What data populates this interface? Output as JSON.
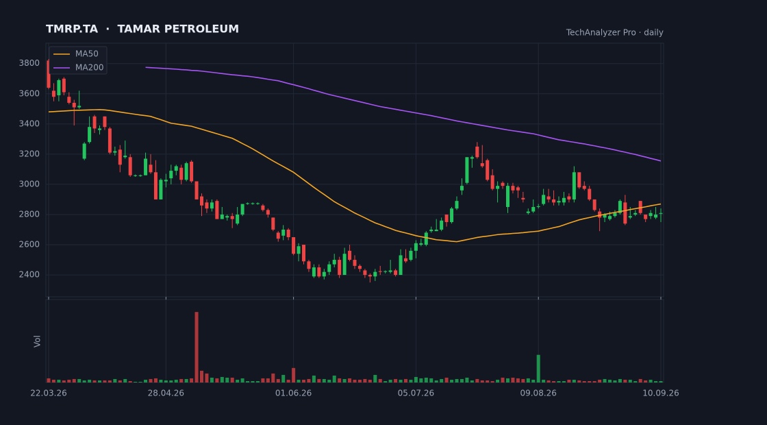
{
  "chart_data": {
    "type": "candlestick",
    "title": "TMRP.TA  ·  TAMAR PETROLEUM",
    "subtitle": "TechAnalyzer Pro · daily",
    "volume_label": "Vol",
    "categories": [
      "22.03.26",
      null,
      null,
      null,
      null,
      null,
      null,
      null,
      null,
      null,
      null,
      null,
      null,
      null,
      null,
      null,
      null,
      null,
      null,
      null,
      null,
      null,
      null,
      "28.04.26",
      null,
      null,
      null,
      null,
      null,
      null,
      null,
      null,
      null,
      null,
      null,
      null,
      null,
      null,
      null,
      null,
      null,
      null,
      null,
      null,
      null,
      null,
      null,
      null,
      "01.06.26",
      null,
      null,
      null,
      null,
      null,
      null,
      null,
      null,
      null,
      null,
      null,
      null,
      null,
      null,
      null,
      null,
      null,
      null,
      null,
      null,
      null,
      null,
      null,
      "05.07.26",
      null,
      null,
      null,
      null,
      null,
      null,
      null,
      null,
      null,
      null,
      null,
      null,
      null,
      null,
      null,
      null,
      null,
      null,
      null,
      null,
      null,
      null,
      null,
      "09.08.26",
      null,
      null,
      null,
      null,
      null,
      null,
      null,
      null,
      null,
      null,
      null,
      null,
      null,
      null,
      null,
      null,
      null,
      null,
      null,
      null,
      null,
      null,
      null,
      "10.09.26"
    ],
    "open": [
      3820,
      3620,
      3590,
      3700,
      3580,
      3540,
      3510,
      3170,
      3280,
      3450,
      3360,
      3450,
      3370,
      3210,
      3230,
      3180,
      3180,
      3055,
      3055,
      3060,
      3130,
      3080,
      2900,
      3020,
      3040,
      3090,
      3110,
      3030,
      3150,
      3020,
      2920,
      2880,
      2840,
      2890,
      2770,
      2780,
      2790,
      2740,
      2800,
      2870,
      2870,
      2870,
      2860,
      2830,
      2780,
      2680,
      2660,
      2700,
      2650,
      2540,
      2600,
      2490,
      2390,
      2450,
      2390,
      2420,
      2470,
      2500,
      2400,
      2560,
      2500,
      2460,
      2430,
      2400,
      2390,
      2425,
      2420,
      2420,
      2430,
      2400,
      2510,
      2500,
      2560,
      2600,
      2600,
      2690,
      2690,
      2700,
      2800,
      2750,
      2840,
      2960,
      3010,
      3170,
      3250,
      3140,
      3160,
      3060,
      2970,
      3010,
      2850,
      2990,
      2980,
      2910,
      2810,
      2820,
      2850,
      2870,
      2920,
      2900,
      2880,
      2880,
      2920,
      2900,
      3080,
      2990,
      2970,
      2900,
      2820,
      2780,
      2770,
      2790,
      2810,
      2880,
      2780,
      2800,
      2890,
      2800,
      2790,
      2780,
      2805
    ],
    "high": [
      3830,
      3670,
      3700,
      3710,
      3610,
      3560,
      3620,
      3280,
      3450,
      3460,
      3390,
      3450,
      3380,
      3250,
      3260,
      3290,
      3200,
      3065,
      3065,
      3210,
      3200,
      3160,
      3040,
      3070,
      3130,
      3130,
      3130,
      3150,
      3160,
      3020,
      2940,
      2900,
      2900,
      2900,
      2850,
      2800,
      2810,
      2850,
      2870,
      2880,
      2880,
      2880,
      2870,
      2840,
      2780,
      2690,
      2730,
      2710,
      2650,
      2610,
      2600,
      2500,
      2470,
      2470,
      2440,
      2490,
      2540,
      2520,
      2580,
      2600,
      2530,
      2470,
      2440,
      2410,
      2440,
      2460,
      2430,
      2500,
      2440,
      2570,
      2570,
      2580,
      2630,
      2640,
      2690,
      2720,
      2770,
      2780,
      2800,
      2850,
      2920,
      3040,
      3180,
      3190,
      3280,
      3260,
      3170,
      3100,
      3020,
      3020,
      3010,
      3010,
      2990,
      2950,
      2840,
      2900,
      2870,
      2970,
      2970,
      2960,
      2920,
      2950,
      2940,
      3120,
      3080,
      3020,
      2990,
      2900,
      2840,
      2810,
      2820,
      2830,
      2900,
      2930,
      2850,
      2830,
      2890,
      2800,
      2830,
      2850,
      2840
    ],
    "low": [
      3630,
      3550,
      3550,
      3590,
      3530,
      3390,
      3500,
      3160,
      3270,
      3340,
      3330,
      3360,
      3200,
      3190,
      3080,
      3170,
      3050,
      3050,
      3050,
      3060,
      3070,
      2900,
      2900,
      2980,
      3000,
      3060,
      3000,
      3020,
      3010,
      2900,
      2790,
      2810,
      2820,
      2770,
      2770,
      2760,
      2710,
      2730,
      2790,
      2865,
      2865,
      2865,
      2820,
      2780,
      2690,
      2620,
      2630,
      2630,
      2530,
      2490,
      2470,
      2420,
      2380,
      2380,
      2370,
      2400,
      2450,
      2380,
      2400,
      2490,
      2440,
      2420,
      2380,
      2350,
      2360,
      2400,
      2410,
      2410,
      2390,
      2400,
      2480,
      2490,
      2510,
      2590,
      2590,
      2680,
      2690,
      2690,
      2720,
      2740,
      2830,
      2930,
      3000,
      3110,
      3170,
      3110,
      3020,
      2960,
      2880,
      2970,
      2810,
      2940,
      2910,
      2880,
      2800,
      2810,
      2840,
      2860,
      2880,
      2860,
      2860,
      2860,
      2880,
      2880,
      2970,
      2960,
      2890,
      2820,
      2690,
      2750,
      2760,
      2780,
      2800,
      2730,
      2770,
      2790,
      2800,
      2750,
      2770,
      2770,
      2750
    ],
    "close": [
      3640,
      3580,
      3690,
      3610,
      3540,
      3510,
      3520,
      3270,
      3380,
      3370,
      3370,
      3380,
      3210,
      3220,
      3130,
      3190,
      3060,
      3060,
      3060,
      3170,
      3080,
      2900,
      3030,
      3030,
      3090,
      3120,
      3030,
      3140,
      3020,
      2900,
      2860,
      2840,
      2880,
      2770,
      2800,
      2790,
      2770,
      2800,
      2870,
      2875,
      2875,
      2875,
      2830,
      2800,
      2700,
      2640,
      2700,
      2650,
      2540,
      2590,
      2490,
      2440,
      2450,
      2390,
      2420,
      2470,
      2500,
      2400,
      2540,
      2500,
      2460,
      2440,
      2400,
      2390,
      2420,
      2420,
      2425,
      2430,
      2400,
      2530,
      2490,
      2560,
      2610,
      2610,
      2680,
      2700,
      2700,
      2760,
      2750,
      2840,
      2890,
      2990,
      3180,
      3180,
      3180,
      3120,
      3030,
      2970,
      2990,
      2990,
      2990,
      2960,
      2960,
      2900,
      2820,
      2850,
      2855,
      2930,
      2900,
      2880,
      2890,
      2910,
      2900,
      3080,
      2980,
      2970,
      2900,
      2830,
      2780,
      2800,
      2790,
      2810,
      2890,
      2740,
      2790,
      2810,
      2810,
      2770,
      2810,
      2800,
      2810
    ],
    "volume": [
      6,
      4,
      4,
      3,
      4,
      5,
      5,
      3,
      4,
      3,
      3,
      3,
      3,
      5,
      3,
      5,
      2,
      1,
      1,
      4,
      5,
      6,
      4,
      3,
      3,
      4,
      5,
      5,
      6,
      102,
      17,
      13,
      7,
      6,
      8,
      7,
      7,
      4,
      6,
      2,
      2,
      2,
      6,
      6,
      13,
      5,
      11,
      4,
      21,
      4,
      4,
      5,
      10,
      5,
      5,
      4,
      10,
      6,
      5,
      6,
      4,
      4,
      5,
      4,
      11,
      5,
      2,
      4,
      5,
      4,
      5,
      4,
      8,
      6,
      7,
      6,
      3,
      5,
      7,
      4,
      5,
      5,
      7,
      3,
      5,
      3,
      3,
      2,
      4,
      7,
      6,
      7,
      6,
      5,
      6,
      4,
      40,
      4,
      3,
      2,
      2,
      2,
      4,
      4,
      3,
      2,
      2,
      2,
      4,
      5,
      4,
      3,
      5,
      4,
      4,
      2,
      5,
      3,
      4,
      2,
      2
    ],
    "series": [
      {
        "name": "MA50",
        "color": "#f5a623",
        "values": [
          3480,
          3482,
          3484,
          3486,
          3488,
          3490,
          3491,
          3492,
          3493,
          3494,
          3495,
          3493,
          3489,
          3484,
          3479,
          3474,
          3469,
          3464,
          3459,
          3455,
          3450,
          3439,
          3428,
          3416,
          3405,
          3400,
          3395,
          3390,
          3385,
          3375,
          3365,
          3355,
          3345,
          3335,
          3325,
          3315,
          3305,
          3288,
          3270,
          3253,
          3235,
          3215,
          3195,
          3175,
          3155,
          3136,
          3118,
          3099,
          3080,
          3055,
          3030,
          3005,
          2980,
          2956,
          2933,
          2909,
          2885,
          2866,
          2848,
          2829,
          2810,
          2794,
          2778,
          2761,
          2745,
          2733,
          2720,
          2708,
          2695,
          2686,
          2678,
          2669,
          2660,
          2653,
          2647,
          2640,
          2633,
          2630,
          2627,
          2623,
          2620,
          2627,
          2634,
          2641,
          2648,
          2653,
          2657,
          2662,
          2667,
          2670,
          2672,
          2675,
          2677,
          2680,
          2684,
          2687,
          2690,
          2698,
          2705,
          2713,
          2720,
          2731,
          2743,
          2754,
          2765,
          2773,
          2780,
          2788,
          2795,
          2801,
          2808,
          2814,
          2820,
          2826,
          2833,
          2839,
          2845,
          2851,
          2858,
          2864,
          2870
        ]
      },
      {
        "name": "MA200",
        "color": "#a855f7",
        "values": [
          null,
          null,
          null,
          null,
          null,
          null,
          null,
          null,
          null,
          null,
          null,
          null,
          null,
          null,
          null,
          null,
          null,
          null,
          null,
          3775,
          3773,
          3771,
          3769,
          3767,
          3765,
          3763,
          3760,
          3758,
          3755,
          3753,
          3750,
          3746,
          3742,
          3738,
          3734,
          3730,
          3726,
          3723,
          3719,
          3716,
          3712,
          3707,
          3702,
          3696,
          3691,
          3686,
          3677,
          3668,
          3660,
          3651,
          3642,
          3633,
          3623,
          3614,
          3604,
          3595,
          3587,
          3579,
          3571,
          3563,
          3555,
          3547,
          3539,
          3531,
          3523,
          3515,
          3509,
          3503,
          3497,
          3491,
          3485,
          3479,
          3473,
          3467,
          3461,
          3455,
          3448,
          3441,
          3434,
          3427,
          3420,
          3414,
          3408,
          3402,
          3396,
          3390,
          3384,
          3378,
          3372,
          3366,
          3360,
          3355,
          3350,
          3345,
          3340,
          3335,
          3327,
          3319,
          3311,
          3303,
          3295,
          3290,
          3284,
          3279,
          3273,
          3268,
          3261,
          3255,
          3248,
          3242,
          3235,
          3228,
          3220,
          3213,
          3205,
          3198,
          3189,
          3181,
          3172,
          3164,
          3155
        ]
      }
    ],
    "up_color": "#22c55e",
    "down_color": "#ef4444",
    "ylim": [
      2255,
      3935
    ],
    "yticks": [
      2400,
      2600,
      2800,
      3000,
      3200,
      3400,
      3600,
      3800
    ],
    "volume_ylim": [
      0,
      120
    ],
    "grid": true,
    "legend": "upper-left"
  }
}
